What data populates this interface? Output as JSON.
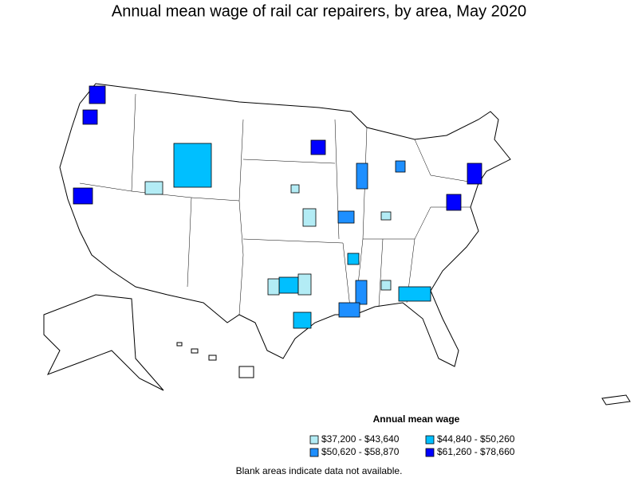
{
  "title": "Annual mean wage of rail car repairers, by area, May 2020",
  "legend": {
    "title": "Annual mean wage",
    "items": [
      {
        "label": "$37,200 - $43,640",
        "color": "#b3ecf5"
      },
      {
        "label": "$44,840 - $50,260",
        "color": "#00bfff"
      },
      {
        "label": "$50,620 - $58,870",
        "color": "#1e8fff"
      },
      {
        "label": "$61,260 - $78,660",
        "color": "#0000ff"
      }
    ]
  },
  "footnote": "Blank areas indicate data not available."
}
